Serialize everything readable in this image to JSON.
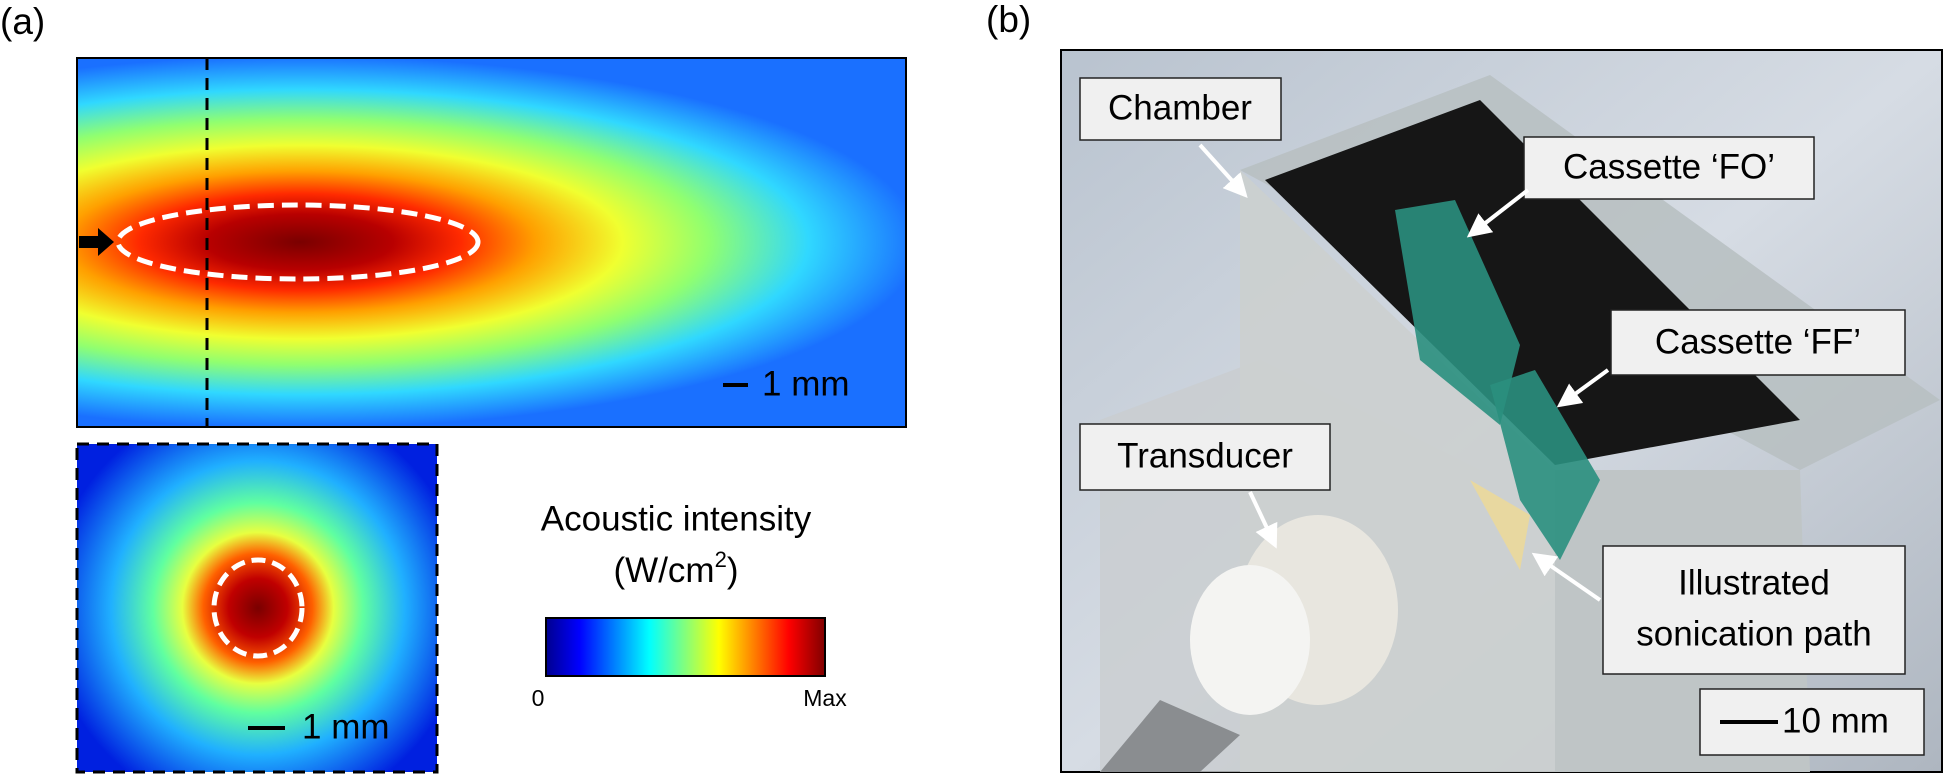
{
  "panel_a": {
    "label": "(a)",
    "top_map": {
      "scale_bar": "1 mm"
    },
    "bottom_map": {
      "scale_bar": "1 mm"
    },
    "colorbar": {
      "title": "Acoustic intensity",
      "unit": {
        "text": "(W/cm",
        "superscript": "2",
        "close": ")"
      },
      "min_label": "0",
      "max_label": "Max"
    }
  },
  "panel_b": {
    "label": "(b)",
    "callouts": [
      "Chamber",
      "Cassette ‘FO’",
      "Cassette ‘FF’",
      "Transducer",
      [
        "Illustrated",
        "sonication path"
      ]
    ],
    "scale_bar": "10 mm"
  }
}
